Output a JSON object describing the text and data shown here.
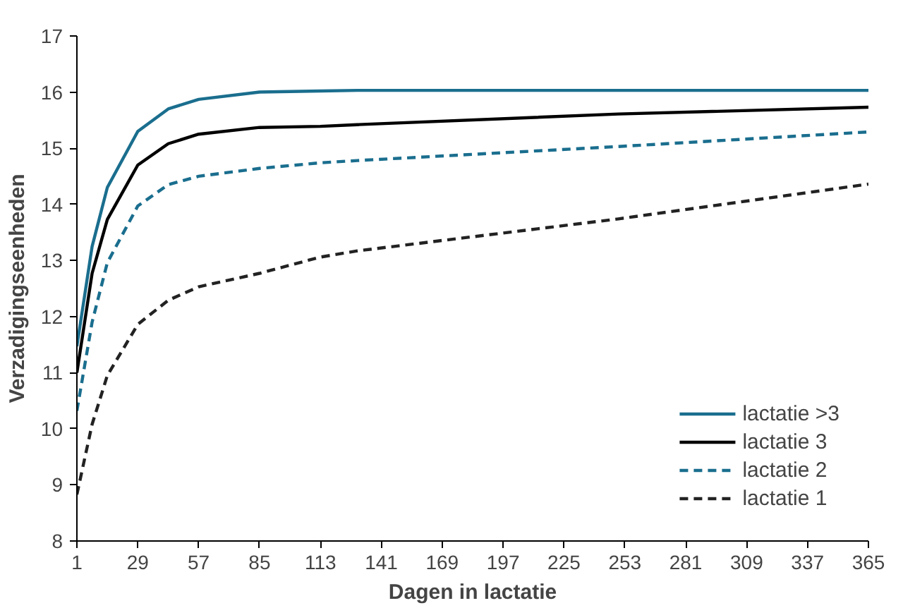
{
  "chart_data": {
    "type": "line",
    "xlabel": "Dagen in lactatie",
    "ylabel": "Verzadigingseenheden",
    "xlim": [
      1,
      365
    ],
    "ylim": [
      8,
      17
    ],
    "xticks": [
      1,
      29,
      57,
      85,
      113,
      141,
      169,
      197,
      225,
      253,
      281,
      309,
      337,
      365
    ],
    "yticks": [
      8,
      9,
      10,
      11,
      12,
      13,
      14,
      15,
      16,
      17
    ],
    "x": [
      1,
      8,
      15,
      29,
      43,
      57,
      85,
      113,
      130,
      250,
      365
    ],
    "grid": false,
    "legend": "bottom right",
    "marker": "none",
    "series": [
      {
        "name": "lactatie >3",
        "color": "#1a6e8e",
        "line_style": "solid",
        "values": [
          11.47,
          13.25,
          14.3,
          15.3,
          15.7,
          15.87,
          16.0,
          16.02,
          16.03,
          16.03,
          16.03
        ]
      },
      {
        "name": "lactatie 3",
        "color": "#000000",
        "line_style": "solid",
        "values": [
          11.0,
          12.77,
          13.73,
          14.7,
          15.08,
          15.25,
          15.37,
          15.39,
          15.42,
          15.61,
          15.73
        ]
      },
      {
        "name": "lactatie 2",
        "color": "#1a6e8e",
        "line_style": "dashed",
        "values": [
          10.32,
          11.9,
          12.96,
          13.97,
          14.35,
          14.5,
          14.64,
          14.74,
          14.78,
          15.03,
          15.29
        ]
      },
      {
        "name": "lactatie 1",
        "color": "#222222",
        "line_style": "dashed",
        "values": [
          8.83,
          10.08,
          10.95,
          11.86,
          12.29,
          12.53,
          12.77,
          13.06,
          13.17,
          13.74,
          14.36
        ]
      }
    ]
  }
}
